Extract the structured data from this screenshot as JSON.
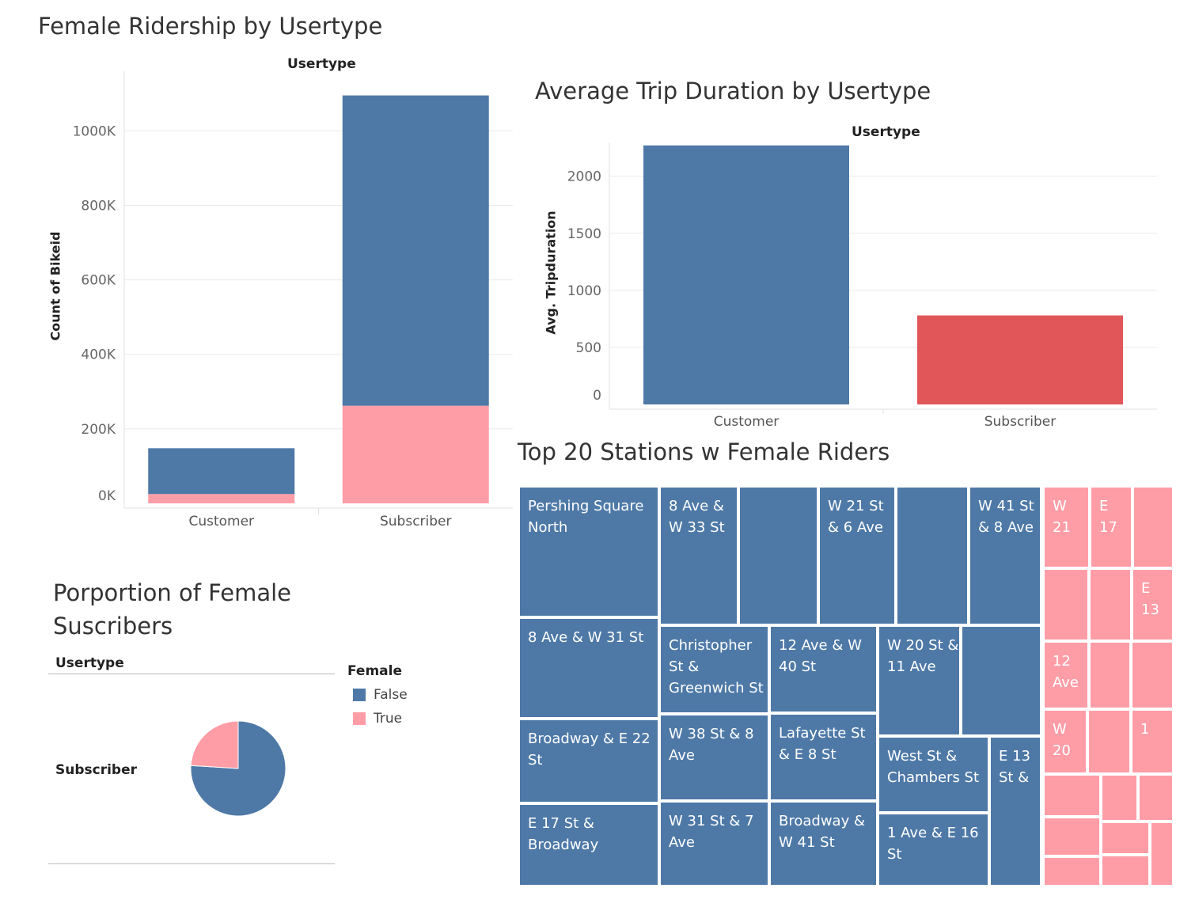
{
  "chart_data": [
    {
      "type": "bar",
      "stacked": true,
      "title": "Female Ridership by Usertype",
      "column_header": "Usertype",
      "ylabel": "Count of Bikeid",
      "categories": [
        "Customer",
        "Subscriber"
      ],
      "series": [
        {
          "name": "False",
          "color": "#4e79a7",
          "values": [
            123000,
            833000
          ]
        },
        {
          "name": "True",
          "color": "#ff9da7",
          "values": [
            25000,
            262000
          ]
        }
      ],
      "yticks": [
        "0K",
        "200K",
        "400K",
        "600K",
        "800K",
        "1000K"
      ],
      "ytick_values": [
        0,
        200000,
        400000,
        600000,
        800000,
        1000000
      ],
      "ylim": [
        0,
        1160000
      ],
      "grid": true
    },
    {
      "type": "bar",
      "title": "Average Trip Duration by Usertype",
      "column_header": "Usertype",
      "ylabel": "Avg. Tripduration",
      "categories": [
        "Customer",
        "Subscriber"
      ],
      "values": [
        2270,
        780
      ],
      "colors": [
        "#4e79a7",
        "#e15759"
      ],
      "yticks": [
        "0",
        "500",
        "1000",
        "1500",
        "2000"
      ],
      "ytick_values": [
        0,
        500,
        1000,
        1500,
        2000
      ],
      "ylim": [
        0,
        2400
      ],
      "grid": true
    },
    {
      "type": "pie",
      "title": "Porportion of Female Suscribers",
      "column_header": "Usertype",
      "row_label": "Subscriber",
      "legend_title": "Female",
      "slices": [
        {
          "name": "False",
          "value": 0.76,
          "color": "#4e79a7"
        },
        {
          "name": "True",
          "value": 0.24,
          "color": "#ff9da7"
        }
      ]
    },
    {
      "type": "treemap",
      "title": "Top 20 Stations w Female Riders",
      "colors": {
        "false": "#4e79a7",
        "true": "#ff9da7"
      },
      "labels": [
        "Pershing Square\nNorth",
        "8 Ave &\nW 33 St",
        "W 21 St\n& 6 Ave",
        "W 41 St\n& 8 Ave",
        "8 Ave & W 31 St",
        "Christopher\nSt &\nGreenwich St",
        "12 Ave & W\n40 St",
        "W 20 St &\n11 Ave",
        "Broadway & E 22\nSt",
        "W 38 St & 8\nAve",
        "Lafayette St\n& E 8 St",
        "West St &\nChambers St",
        "E 13\nSt &",
        "E 17 St &\nBroadway",
        "W 31 St & 7\nAve",
        "Broadway &\nW 41 St",
        "1 Ave & E 16\nSt",
        "W\n21",
        "E\n17",
        "E\n13",
        "12\nAve",
        "W\n20",
        "1"
      ]
    }
  ]
}
